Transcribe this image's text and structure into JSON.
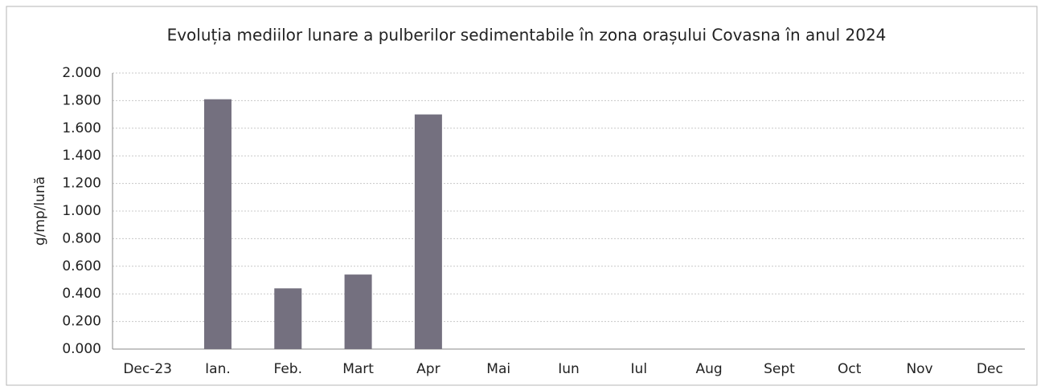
{
  "chart_data": {
    "type": "bar",
    "title": "Evoluția mediilor lunare a pulberilor sedimentabile în zona orașului Covasna în anul 2024",
    "y_label": "g/mp/lună",
    "categories": [
      "Dec-23",
      "Ian.",
      "Feb.",
      "Mart",
      "Apr",
      "Mai",
      "Iun",
      "Iul",
      "Aug",
      "Sept",
      "Oct",
      "Nov",
      "Dec"
    ],
    "values": [
      null,
      1.81,
      0.44,
      0.54,
      1.7,
      null,
      null,
      null,
      null,
      null,
      null,
      null,
      null
    ],
    "color": "#74707f",
    "ylim": [
      0,
      2
    ],
    "yticks": [
      {
        "value": 0,
        "label": "0.000"
      },
      {
        "value": 0.2,
        "label": "0.200"
      },
      {
        "value": 0.4,
        "label": "0.400"
      },
      {
        "value": 0.6,
        "label": "0.600"
      },
      {
        "value": 0.8,
        "label": "0.800"
      },
      {
        "value": 1,
        "label": "1.000"
      },
      {
        "value": 1.2,
        "label": "1.200"
      },
      {
        "value": 1.4,
        "label": "1.400"
      },
      {
        "value": 1.6,
        "label": "1.600"
      },
      {
        "value": 1.8,
        "label": "1.800"
      },
      {
        "value": 2,
        "label": "2.000"
      }
    ],
    "grid": true
  }
}
